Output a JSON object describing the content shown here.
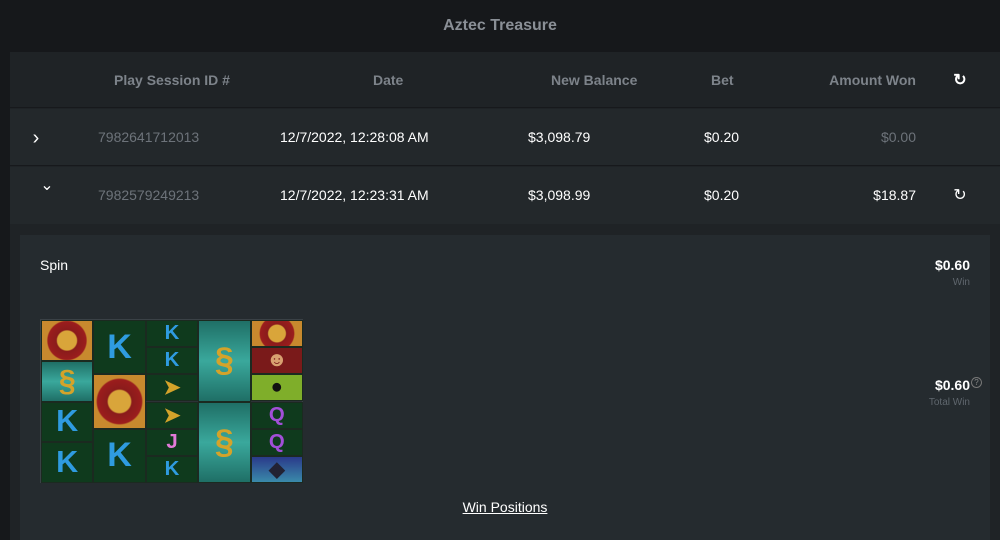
{
  "title": "Aztec Treasure",
  "table": {
    "headers": [
      "Play Session ID #",
      "Date",
      "New Balance",
      "Bet",
      "Amount Won"
    ],
    "rows": [
      {
        "expanded": false,
        "id": "7982641712013",
        "date": "12/7/2022, 12:28:08 AM",
        "balance": "$3,098.79",
        "bet": "$0.20",
        "won": "$0.00"
      },
      {
        "expanded": true,
        "id": "7982579249213",
        "date": "12/7/2022, 12:23:31 AM",
        "balance": "$3,098.99",
        "bet": "$0.20",
        "won": "$18.87"
      }
    ]
  },
  "detail": {
    "label": "Spin",
    "win": "$0.60",
    "win_label": "Win",
    "total_win": "$0.60",
    "total_win_label": "Total Win",
    "help_icon": "?",
    "win_positions": "Win Positions",
    "reels": [
      [
        "wheel",
        "snake",
        "K",
        "K"
      ],
      [
        "K",
        "wheel",
        "K"
      ],
      [
        "K",
        "K",
        "horn",
        "horn",
        "J",
        "K"
      ],
      [
        "snake",
        "snake"
      ],
      [
        "wheel",
        "explorer",
        "toucan",
        "Q",
        "Q",
        "panther"
      ]
    ]
  },
  "icons": {
    "refresh": "↻",
    "collapsed": "›",
    "expanded": "⌄"
  }
}
